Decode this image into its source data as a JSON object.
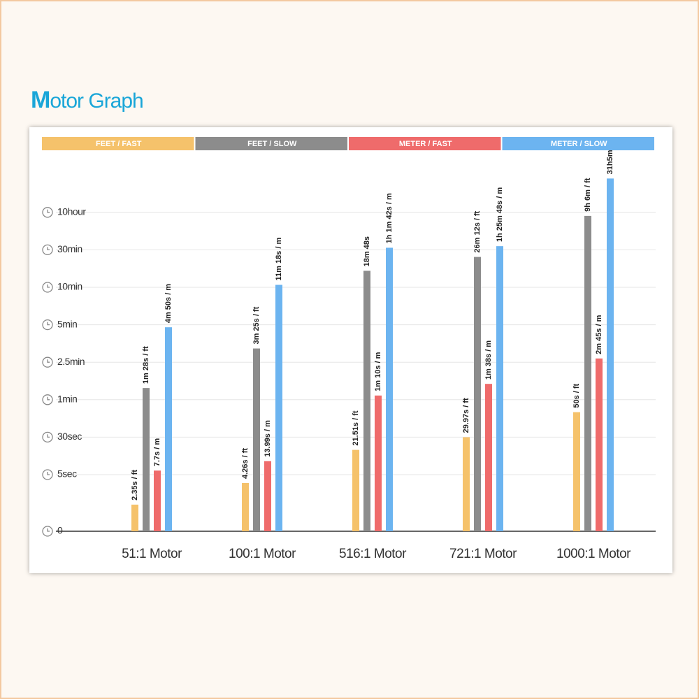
{
  "chart_data": {
    "type": "bar",
    "title": "Motor Graph",
    "categories": [
      "51:1 Motor",
      "100:1 Motor",
      "516:1 Motor",
      "721:1 Motor",
      "1000:1 Motor"
    ],
    "series": [
      {
        "name": "FEET / FAST",
        "color": "#f5c26b",
        "values": [
          2.35,
          4.26,
          21.51,
          29.97,
          50
        ],
        "value_labels": [
          "2.35s / ft",
          "4.26s / ft",
          "21.51s / ft",
          "29.97s / ft",
          "50s / ft"
        ]
      },
      {
        "name": "FEET / SLOW",
        "color": "#8c8c8c",
        "values": [
          88,
          205,
          1128,
          1572,
          32760
        ],
        "value_labels": [
          "1m 28s / ft",
          "3m 25s / ft",
          "18m 48s",
          "26m 12s / ft",
          "9h 6m / ft"
        ]
      },
      {
        "name": "METER / FAST",
        "color": "#ef6b6b",
        "values": [
          7.7,
          13.99,
          70,
          98,
          165
        ],
        "value_labels": [
          "7.7s / m",
          "13.99s / m",
          "1m 10s / m",
          "1m 38s / m",
          "2m 45s / m"
        ]
      },
      {
        "name": "METER / SLOW",
        "color": "#6cb4f0",
        "values": [
          290,
          678,
          3702,
          5148,
          111900
        ],
        "value_labels": [
          "4m 50s / m",
          "11m 18s / m",
          "1h 1m 42s / m",
          "1h 25m 48s / m",
          "31h5m"
        ]
      }
    ],
    "ylim": [
      0,
      120000
    ],
    "yticks": [
      0,
      {
        "value": 5,
        "label": "5sec"
      },
      {
        "value": 30,
        "label": "30sec"
      },
      {
        "value": 60,
        "label": "1min"
      },
      {
        "value": 150,
        "label": "2.5min"
      },
      {
        "value": 300,
        "label": "5min"
      },
      {
        "value": 600,
        "label": "10min"
      },
      {
        "value": 1800,
        "label": "30min"
      },
      {
        "value": 36000,
        "label": "10hour"
      }
    ],
    "grid": true
  }
}
